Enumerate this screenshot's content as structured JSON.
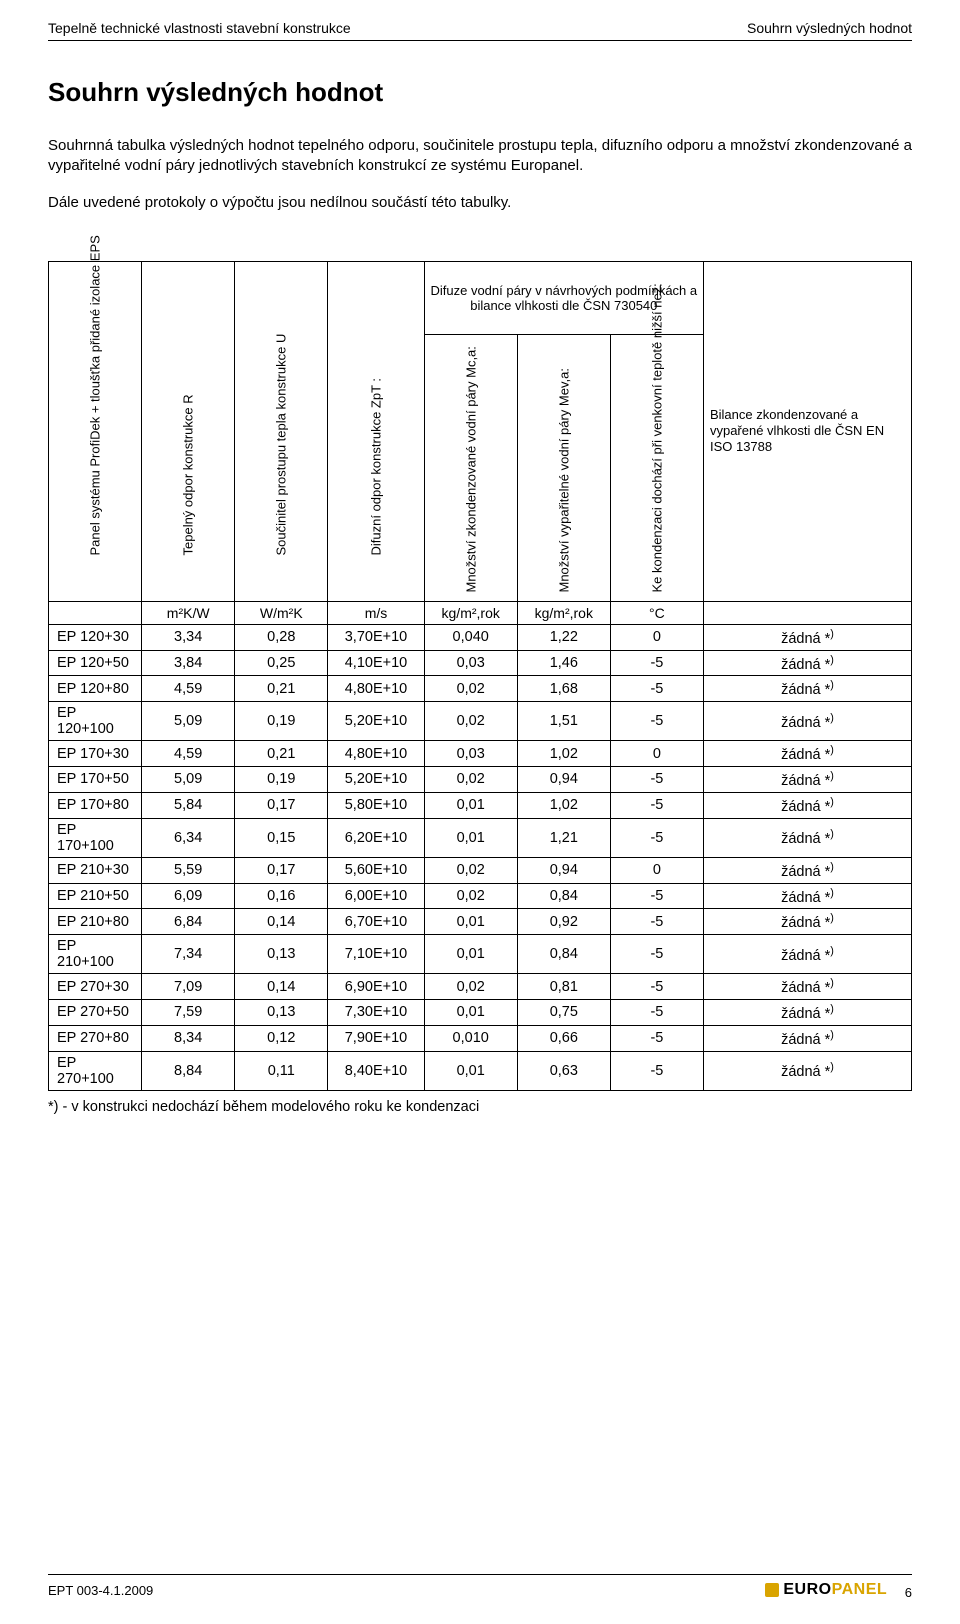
{
  "header": {
    "left": "Tepelně technické vlastnosti stavební konstrukce",
    "right": "Souhrn výsledných hodnot"
  },
  "title": "Souhrn výsledných hodnot",
  "intro1": "Souhrnná tabulka výsledných hodnot tepelného odporu, součinitele prostupu tepla, difuzního odporu a množství zkondenzované a vypařitelné vodní páry jednotlivých stavebních konstrukcí ze systému Europanel.",
  "intro2": "Dále uvedené protokoly o výpočtu jsou nedílnou součástí této tabulky.",
  "table": {
    "col_headers": {
      "panel": "Panel systému ProfiDek + tloušťka přidané izolace EPS",
      "R": "Tepelný odpor konstrukce R",
      "U": "Součinitel prostupu tepla konstrukce U",
      "ZpT": "Difuzní odpor konstrukce ZpT :",
      "group": "Difuze vodní páry v návrhových podmínkách a bilance vlhkosti dle ČSN 730540",
      "Mc": "Množství zkondenzované vodní páry Mc,a:",
      "Mev": "Množství vypařitelné vodní páry Mev,a:",
      "Kond": "Ke kondenzaci dochází při venkovní teplotě nižší než:",
      "Bilance": "Bilance zkondenzované a vypařené vlhkosti dle ČSN EN ISO 13788"
    },
    "units": {
      "R": "m²K/W",
      "U": "W/m²K",
      "ZpT": "m/s",
      "Mc": "kg/m²,rok",
      "Mev": "kg/m²,rok",
      "Kond": "°C"
    },
    "rows": [
      {
        "p": "EP 120+30",
        "R": "3,34",
        "U": "0,28",
        "Z": "3,70E+10",
        "Mc": "0,040",
        "Mev": "1,22",
        "K": "0",
        "B": "žádná *)"
      },
      {
        "p": "EP 120+50",
        "R": "3,84",
        "U": "0,25",
        "Z": "4,10E+10",
        "Mc": "0,03",
        "Mev": "1,46",
        "K": "-5",
        "B": "žádná *)"
      },
      {
        "p": "EP 120+80",
        "R": "4,59",
        "U": "0,21",
        "Z": "4,80E+10",
        "Mc": "0,02",
        "Mev": "1,68",
        "K": "-5",
        "B": "žádná *)"
      },
      {
        "p": "EP 120+100",
        "R": "5,09",
        "U": "0,19",
        "Z": "5,20E+10",
        "Mc": "0,02",
        "Mev": "1,51",
        "K": "-5",
        "B": "žádná *)"
      },
      {
        "p": "EP 170+30",
        "R": "4,59",
        "U": "0,21",
        "Z": "4,80E+10",
        "Mc": "0,03",
        "Mev": "1,02",
        "K": "0",
        "B": "žádná *)"
      },
      {
        "p": "EP 170+50",
        "R": "5,09",
        "U": "0,19",
        "Z": "5,20E+10",
        "Mc": "0,02",
        "Mev": "0,94",
        "K": "-5",
        "B": "žádná *)"
      },
      {
        "p": "EP 170+80",
        "R": "5,84",
        "U": "0,17",
        "Z": "5,80E+10",
        "Mc": "0,01",
        "Mev": "1,02",
        "K": "-5",
        "B": "žádná *)"
      },
      {
        "p": "EP 170+100",
        "R": "6,34",
        "U": "0,15",
        "Z": "6,20E+10",
        "Mc": "0,01",
        "Mev": "1,21",
        "K": "-5",
        "B": "žádná *)"
      },
      {
        "p": "EP 210+30",
        "R": "5,59",
        "U": "0,17",
        "Z": "5,60E+10",
        "Mc": "0,02",
        "Mev": "0,94",
        "K": "0",
        "B": "žádná *)"
      },
      {
        "p": "EP 210+50",
        "R": "6,09",
        "U": "0,16",
        "Z": "6,00E+10",
        "Mc": "0,02",
        "Mev": "0,84",
        "K": "-5",
        "B": "žádná *)"
      },
      {
        "p": "EP 210+80",
        "R": "6,84",
        "U": "0,14",
        "Z": "6,70E+10",
        "Mc": "0,01",
        "Mev": "0,92",
        "K": "-5",
        "B": "žádná *)"
      },
      {
        "p": "EP 210+100",
        "R": "7,34",
        "U": "0,13",
        "Z": "7,10E+10",
        "Mc": "0,01",
        "Mev": "0,84",
        "K": "-5",
        "B": "žádná *)"
      },
      {
        "p": "EP 270+30",
        "R": "7,09",
        "U": "0,14",
        "Z": "6,90E+10",
        "Mc": "0,02",
        "Mev": "0,81",
        "K": "-5",
        "B": "žádná *)"
      },
      {
        "p": "EP 270+50",
        "R": "7,59",
        "U": "0,13",
        "Z": "7,30E+10",
        "Mc": "0,01",
        "Mev": "0,75",
        "K": "-5",
        "B": "žádná *)"
      },
      {
        "p": "EP 270+80",
        "R": "8,34",
        "U": "0,12",
        "Z": "7,90E+10",
        "Mc": "0,010",
        "Mev": "0,66",
        "K": "-5",
        "B": "žádná *)"
      },
      {
        "p": "EP 270+100",
        "R": "8,84",
        "U": "0,11",
        "Z": "8,40E+10",
        "Mc": "0,01",
        "Mev": "0,63",
        "K": "-5",
        "B": "žádná *)"
      }
    ]
  },
  "footnote": "*) - v konstrukci nedochází během modelového roku ke kondenzaci",
  "footer": {
    "doc_id": "EPT 003-4.1.2009",
    "logo_euro": "EURO",
    "logo_panel": "PANEL",
    "page_num": "6"
  }
}
